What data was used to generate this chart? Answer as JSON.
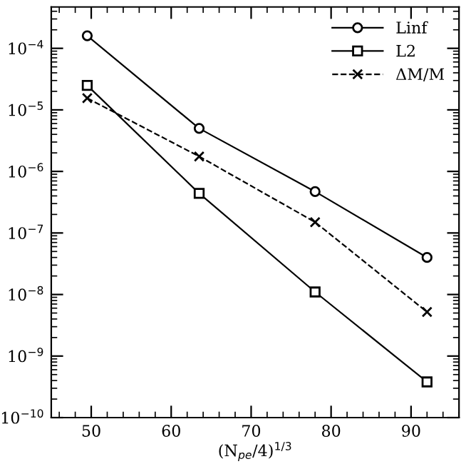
{
  "chart_data": {
    "type": "line",
    "xlabel": "(N$_{pe}$/4)$^{1/3}$",
    "x": [
      49.5,
      63.5,
      78,
      92
    ],
    "series": [
      {
        "name": "Linf",
        "color": "#000000",
        "marker": "circle",
        "line_style": "solid",
        "values": [
          0.00016,
          5e-06,
          4.7e-07,
          4e-08
        ]
      },
      {
        "name": "L2",
        "color": "#000000",
        "marker": "square",
        "line_style": "solid",
        "values": [
          2.5e-05,
          4.4e-07,
          1.1e-08,
          3.8e-10
        ]
      },
      {
        "name": "ΔM/M",
        "color": "#000000",
        "marker": "cross",
        "line_style": "dashed",
        "values": [
          1.55e-05,
          1.75e-06,
          1.5e-07,
          5.2e-09
        ]
      }
    ],
    "log": "y",
    "xlim": [
      45,
      96
    ],
    "xticks": [
      50,
      60,
      70,
      80,
      90
    ],
    "ylim": [
      1e-10,
      0.00047
    ],
    "yticks": [
      {
        "value": 1e-10,
        "label": "10$^{−10}$"
      },
      {
        "value": 1e-09,
        "label": "10$^{−9}$"
      },
      {
        "value": 1e-08,
        "label": "10$^{−8}$"
      },
      {
        "value": 1e-07,
        "label": "10$^{−7}$"
      },
      {
        "value": 1e-06,
        "label": "10$^{−6}$"
      },
      {
        "value": 1e-05,
        "label": "10$^{−5}$"
      },
      {
        "value": 0.0001,
        "label": "10$^{−4}$"
      }
    ],
    "grid": false,
    "legend": "top right"
  }
}
